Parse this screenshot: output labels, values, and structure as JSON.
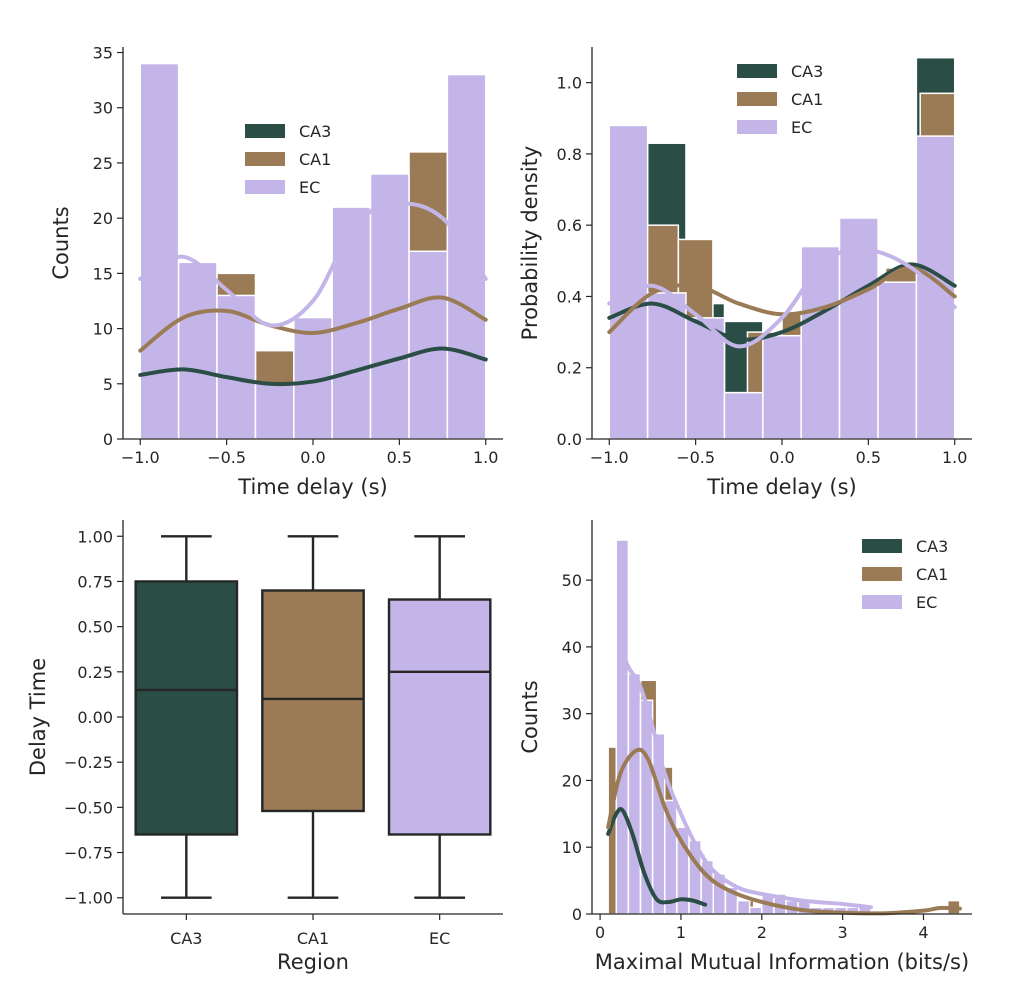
{
  "figure": {
    "colors": {
      "CA3": "#2a4d46",
      "CA1": "#9b7b55",
      "EC": "#c4b5e8",
      "axis": "#262626"
    }
  },
  "chart_data": [
    {
      "id": "p1",
      "type": "bar",
      "xlabel": "Time delay (s)",
      "ylabel": "Counts",
      "xlim": [
        -1.1,
        1.1
      ],
      "ylim": [
        0,
        35.5
      ],
      "xticks": [
        -1.0,
        -0.5,
        0.0,
        0.5,
        1.0
      ],
      "xtick_labels": [
        "−1.0",
        "−0.5",
        "0.0",
        "0.5",
        "1.0"
      ],
      "yticks": [
        0,
        5,
        10,
        15,
        20,
        25,
        30,
        35
      ],
      "ytick_labels": [
        "0",
        "5",
        "10",
        "15",
        "20",
        "25",
        "30",
        "35"
      ],
      "legend": [
        "CA3",
        "CA1",
        "EC"
      ],
      "legend_position": "center",
      "bin_edges": [
        -1.0,
        -0.778,
        -0.556,
        -0.333,
        -0.111,
        0.111,
        0.333,
        0.556,
        0.778,
        1.0
      ],
      "hist_series": [
        {
          "name": "CA3",
          "values": [
            6,
            6,
            5,
            5,
            5,
            6,
            7,
            18,
            8
          ]
        },
        {
          "name": "CA1",
          "values": [
            8,
            12,
            15,
            8,
            10,
            10,
            11,
            26,
            12
          ]
        },
        {
          "name": "EC",
          "values": [
            34,
            16,
            13,
            5,
            11,
            21,
            24,
            17,
            33
          ]
        }
      ],
      "kde_x": [
        -1.0,
        -0.75,
        -0.5,
        -0.25,
        0.0,
        0.25,
        0.5,
        0.75,
        1.0
      ],
      "kde_series": [
        {
          "name": "CA3",
          "values": [
            5.8,
            6.3,
            5.6,
            5.0,
            5.2,
            6.2,
            7.3,
            8.2,
            7.2
          ]
        },
        {
          "name": "CA1",
          "values": [
            8.0,
            11.0,
            11.6,
            10.3,
            9.6,
            10.5,
            11.8,
            12.8,
            10.8
          ]
        },
        {
          "name": "EC",
          "values": [
            14.5,
            16.5,
            13.5,
            10.3,
            12.5,
            19.5,
            21.3,
            20.0,
            14.5
          ]
        }
      ]
    },
    {
      "id": "p2",
      "type": "bar",
      "xlabel": "Time delay (s)",
      "ylabel": "Probability density",
      "xlim": [
        -1.1,
        1.1
      ],
      "ylim": [
        0,
        1.1
      ],
      "xticks": [
        -1.0,
        -0.5,
        0.0,
        0.5,
        1.0
      ],
      "xtick_labels": [
        "−1.0",
        "−0.5",
        "0.0",
        "0.5",
        "1.0"
      ],
      "yticks": [
        0.0,
        0.2,
        0.4,
        0.6,
        0.8,
        1.0
      ],
      "ytick_labels": [
        "0.0",
        "0.2",
        "0.4",
        "0.6",
        "0.8",
        "1.0"
      ],
      "legend": [
        "CA3",
        "CA1",
        "EC"
      ],
      "legend_position": "top-center",
      "hist_series": [
        {
          "name": "CA3",
          "edges": [
            -1.0,
            -0.778,
            -0.556,
            -0.333,
            -0.111,
            0.111,
            0.333,
            0.556,
            0.778,
            1.0
          ],
          "values": [
            0.38,
            0.83,
            0.38,
            0.33,
            0.3,
            0.32,
            0.4,
            0.44,
            1.07
          ]
        },
        {
          "name": "CA1",
          "edges": [
            -1.0,
            -0.8,
            -0.6,
            -0.4,
            -0.2,
            0.0,
            0.2,
            0.4,
            0.6,
            0.8,
            1.0
          ],
          "values": [
            0.4,
            0.6,
            0.56,
            0.13,
            0.3,
            0.35,
            0.4,
            0.45,
            0.48,
            0.97
          ]
        },
        {
          "name": "EC",
          "edges": [
            -1.0,
            -0.778,
            -0.556,
            -0.333,
            -0.111,
            0.111,
            0.333,
            0.556,
            0.778,
            1.0
          ],
          "values": [
            0.88,
            0.41,
            0.34,
            0.13,
            0.29,
            0.54,
            0.62,
            0.44,
            0.85
          ]
        }
      ],
      "kde_x": [
        -1.0,
        -0.75,
        -0.5,
        -0.25,
        0.0,
        0.25,
        0.5,
        0.75,
        1.0
      ],
      "kde_series": [
        {
          "name": "CA3",
          "values": [
            0.34,
            0.38,
            0.33,
            0.28,
            0.3,
            0.36,
            0.43,
            0.49,
            0.43
          ]
        },
        {
          "name": "CA1",
          "values": [
            0.3,
            0.41,
            0.43,
            0.38,
            0.35,
            0.37,
            0.42,
            0.48,
            0.4
          ]
        },
        {
          "name": "EC",
          "values": [
            0.38,
            0.43,
            0.35,
            0.26,
            0.34,
            0.5,
            0.53,
            0.48,
            0.37
          ]
        }
      ]
    },
    {
      "id": "p3",
      "type": "box",
      "xlabel": "Region",
      "ylabel": "Delay Time",
      "categories": [
        "CA3",
        "CA1",
        "EC"
      ],
      "ylim": [
        -1.09,
        1.09
      ],
      "yticks": [
        -1.0,
        -0.75,
        -0.5,
        -0.25,
        0.0,
        0.25,
        0.5,
        0.75,
        1.0
      ],
      "ytick_labels": [
        "−1.00",
        "−0.75",
        "−0.50",
        "−0.25",
        "0.00",
        "0.25",
        "0.50",
        "0.75",
        "1.00"
      ],
      "boxes": [
        {
          "name": "CA3",
          "min": -1.0,
          "q1": -0.65,
          "median": 0.15,
          "q3": 0.75,
          "max": 1.0
        },
        {
          "name": "CA1",
          "min": -1.0,
          "q1": -0.52,
          "median": 0.1,
          "q3": 0.7,
          "max": 1.0
        },
        {
          "name": "EC",
          "min": -1.0,
          "q1": -0.65,
          "median": 0.25,
          "q3": 0.65,
          "max": 1.0
        }
      ]
    },
    {
      "id": "p4",
      "type": "bar",
      "xlabel": "Maximal Mutual Information (bits/s)",
      "ylabel": "Counts",
      "xlim": [
        -0.1,
        4.6
      ],
      "ylim": [
        0,
        59
      ],
      "xticks": [
        0,
        1,
        2,
        3,
        4
      ],
      "xtick_labels": [
        "0",
        "1",
        "2",
        "3",
        "4"
      ],
      "yticks": [
        0,
        10,
        20,
        30,
        40,
        50
      ],
      "ytick_labels": [
        "0",
        "10",
        "20",
        "30",
        "40",
        "50"
      ],
      "legend": [
        "CA3",
        "CA1",
        "EC"
      ],
      "legend_position": "top-right",
      "hist_series": [
        {
          "name": "CA3",
          "edges": [
            0.1,
            0.22,
            0.34,
            0.46,
            0.58,
            0.7,
            0.82,
            0.94,
            1.06,
            1.18,
            1.3
          ],
          "values": [
            12,
            16,
            14,
            9,
            6,
            3,
            2,
            2,
            2,
            1
          ]
        },
        {
          "name": "CA1",
          "edges": [
            0.1,
            0.3,
            0.5,
            0.7,
            0.9,
            1.1,
            1.3,
            1.5,
            1.7,
            1.9,
            2.1,
            2.3,
            2.5,
            2.7,
            2.9,
            3.1,
            3.3,
            3.5,
            3.7,
            3.9,
            4.1,
            4.3,
            4.45
          ],
          "values": [
            25,
            31,
            35,
            22,
            13,
            9,
            5,
            3,
            2,
            1,
            1,
            1,
            0,
            0,
            0,
            0,
            0,
            0,
            0,
            0,
            0,
            2
          ]
        },
        {
          "name": "EC",
          "edges": [
            0.2,
            0.35,
            0.5,
            0.65,
            0.8,
            0.95,
            1.1,
            1.25,
            1.4,
            1.55,
            1.7,
            1.85,
            2.0,
            2.15,
            2.3,
            2.45,
            2.6,
            2.75,
            2.9,
            3.05,
            3.2,
            3.35
          ],
          "values": [
            56,
            36,
            32,
            27,
            17,
            13,
            11,
            8,
            6,
            4,
            2,
            1,
            3,
            3,
            2,
            2,
            1,
            1,
            1,
            1,
            1
          ]
        }
      ],
      "kde_x": [
        0.1,
        0.25,
        0.4,
        0.55,
        0.7,
        0.85,
        1.0,
        1.15,
        1.3,
        1.6,
        2.0,
        2.5,
        3.0,
        3.35,
        3.5,
        4.0,
        4.2,
        4.45
      ],
      "kde_series": [
        {
          "name": "CA3",
          "x": [
            0.1,
            0.2,
            0.28,
            0.4,
            0.55,
            0.7,
            0.85,
            1.0,
            1.15,
            1.3
          ],
          "values": [
            12,
            15,
            15.5,
            12,
            6,
            2.2,
            1.8,
            2.2,
            2.0,
            1.4
          ]
        },
        {
          "name": "CA1",
          "x": [
            0.1,
            0.25,
            0.45,
            0.6,
            0.8,
            1.0,
            1.3,
            1.6,
            2.0,
            2.5,
            3.0,
            3.5,
            4.0,
            4.2,
            4.45
          ],
          "values": [
            13,
            21,
            24.5,
            23,
            16,
            11,
            6,
            3.5,
            1.8,
            0.6,
            0.2,
            0.1,
            0.5,
            0.9,
            0.8
          ]
        },
        {
          "name": "EC",
          "x": [
            0.25,
            0.35,
            0.5,
            0.65,
            0.8,
            1.0,
            1.2,
            1.4,
            1.7,
            2.0,
            2.5,
            3.0,
            3.35
          ],
          "values": [
            40,
            37,
            34,
            28,
            21,
            15,
            10,
            6.5,
            4,
            3,
            2,
            1.5,
            1
          ]
        }
      ]
    }
  ]
}
